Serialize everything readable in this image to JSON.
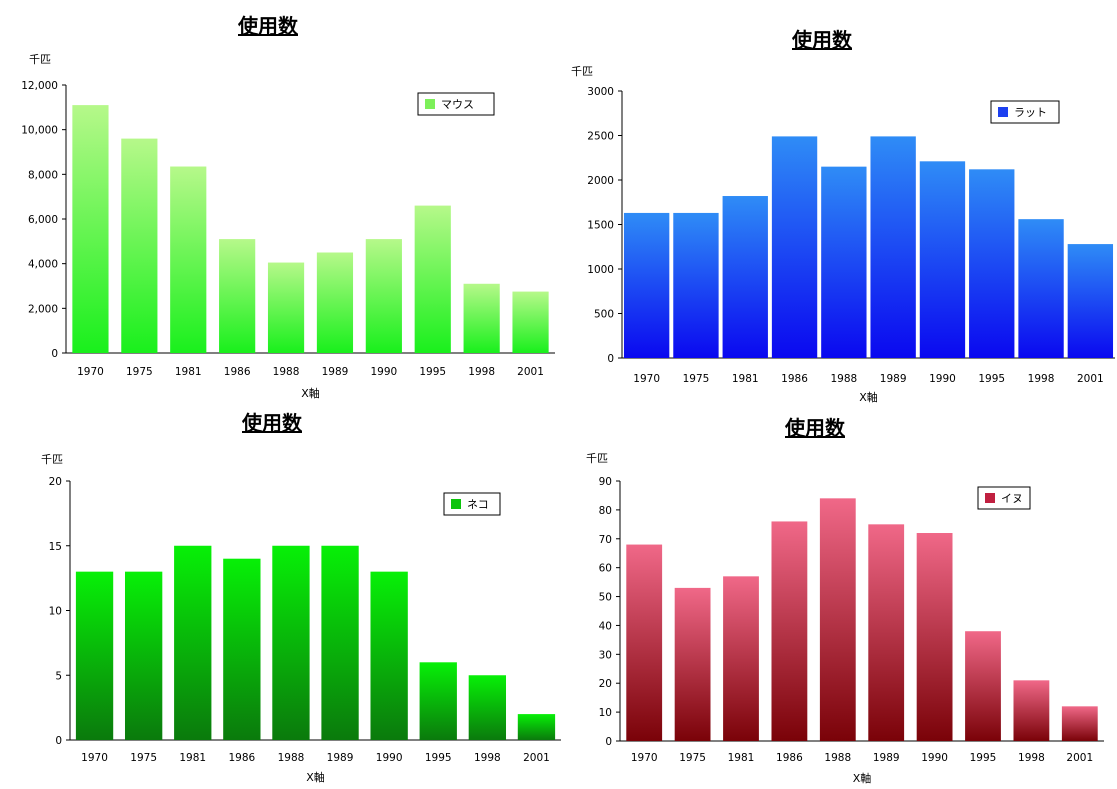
{
  "chart_data": [
    {
      "type": "bar",
      "title": "使用数",
      "ylabel": "千匹",
      "xlabel": "X軸",
      "categories": [
        "1970",
        "1975",
        "1981",
        "1986",
        "1988",
        "1989",
        "1990",
        "1995",
        "1998",
        "2001"
      ],
      "series": [
        {
          "name": "マウス",
          "values": [
            11100,
            9600,
            8350,
            5100,
            4050,
            4500,
            5100,
            6600,
            3100,
            2750
          ]
        }
      ],
      "ylim": [
        0,
        12000
      ],
      "yticks": [
        "0",
        "2,000",
        "4,000",
        "6,000",
        "8,000",
        "10,000",
        "12,000"
      ],
      "legend_position": "top-right",
      "grid": false,
      "colors": {
        "top": "#b6f88a",
        "bottom": "#19f01c",
        "legend": "#7df05a"
      }
    },
    {
      "type": "bar",
      "title": "使用数",
      "ylabel": "千匹",
      "xlabel": "X軸",
      "categories": [
        "1970",
        "1975",
        "1981",
        "1986",
        "1988",
        "1989",
        "1990",
        "1995",
        "1998",
        "2001"
      ],
      "series": [
        {
          "name": "ラット",
          "values": [
            1630,
            1630,
            1820,
            2490,
            2150,
            2490,
            2210,
            2120,
            1560,
            1280
          ]
        }
      ],
      "ylim": [
        0,
        3000
      ],
      "yticks": [
        "0",
        "500",
        "1000",
        "1500",
        "2000",
        "2500",
        "3000"
      ],
      "legend_position": "top-right",
      "grid": false,
      "colors": {
        "top": "#2f8cf6",
        "bottom": "#0a08f0",
        "legend": "#1d40f0"
      }
    },
    {
      "type": "bar",
      "title": "使用数",
      "ylabel": "千匹",
      "xlabel": "X軸",
      "categories": [
        "1970",
        "1975",
        "1981",
        "1986",
        "1988",
        "1989",
        "1990",
        "1995",
        "1998",
        "2001"
      ],
      "series": [
        {
          "name": "ネコ",
          "values": [
            13,
            13,
            15,
            14,
            15,
            15,
            13,
            6,
            5,
            2
          ]
        }
      ],
      "ylim": [
        0,
        20
      ],
      "yticks": [
        "0",
        "5",
        "10",
        "15",
        "20"
      ],
      "legend_position": "top-right",
      "grid": false,
      "colors": {
        "top": "#07f007",
        "bottom": "#0a7a0c",
        "legend": "#0cc40c"
      }
    },
    {
      "type": "bar",
      "title": "使用数",
      "ylabel": "千匹",
      "xlabel": "X軸",
      "categories": [
        "1970",
        "1975",
        "1981",
        "1986",
        "1988",
        "1989",
        "1990",
        "1995",
        "1998",
        "2001"
      ],
      "series": [
        {
          "name": "イヌ",
          "values": [
            68,
            53,
            57,
            76,
            84,
            75,
            72,
            38,
            21,
            12
          ]
        }
      ],
      "ylim": [
        0,
        90
      ],
      "yticks": [
        "0",
        "10",
        "20",
        "30",
        "40",
        "50",
        "60",
        "70",
        "80",
        "90"
      ],
      "legend_position": "top-right",
      "grid": false,
      "colors": {
        "top": "#f06888",
        "bottom": "#7a0208",
        "legend": "#c02040"
      }
    }
  ]
}
